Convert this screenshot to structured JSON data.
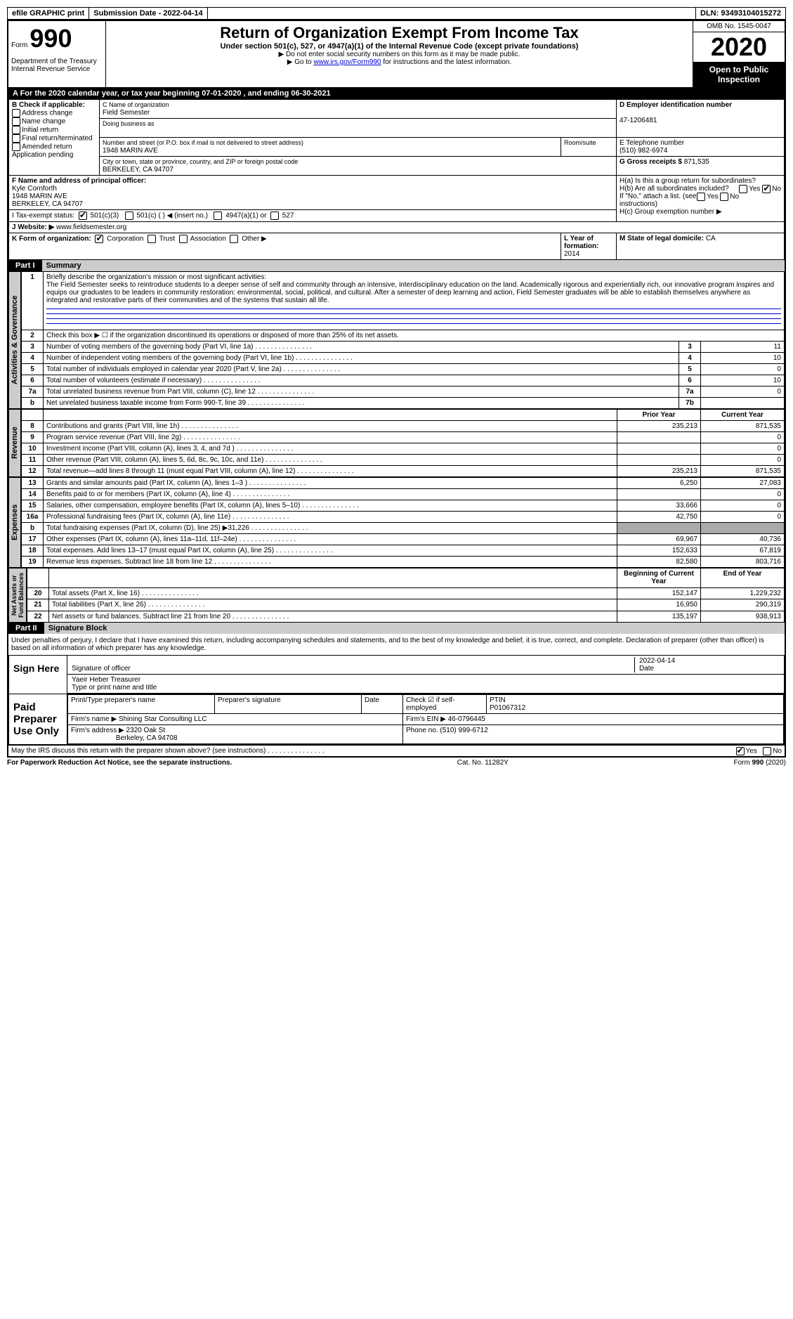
{
  "topbar": {
    "efile": "efile GRAPHIC print",
    "subdate_label": "Submission Date - ",
    "subdate": "2022-04-14",
    "dln_label": "DLN: ",
    "dln": "93493104015272"
  },
  "header": {
    "form_word": "Form",
    "form_num": "990",
    "department": "Department of the Treasury\nInternal Revenue Service",
    "title": "Return of Organization Exempt From Income Tax",
    "subtitle": "Under section 501(c), 527, or 4947(a)(1) of the Internal Revenue Code (except private foundations)",
    "note1": "▶ Do not enter social security numbers on this form as it may be made public.",
    "note2_pre": "▶ Go to ",
    "note2_link": "www.irs.gov/Form990",
    "note2_post": " for instructions and the latest information.",
    "omb": "OMB No. 1545-0047",
    "year": "2020",
    "open": "Open to Public Inspection"
  },
  "lineA": "A For the 2020 calendar year, or tax year beginning 07-01-2020   , and ending 06-30-2021",
  "boxB": {
    "heading": "B Check if applicable:",
    "items": [
      "Address change",
      "Name change",
      "Initial return",
      "Final return/terminated",
      "Amended return",
      "Application pending"
    ]
  },
  "boxC": {
    "label_name": "C Name of organization",
    "name": "Field Semester",
    "dba_label": "Doing business as",
    "street_label": "Number and street (or P.O. box if mail is not delivered to street address)",
    "room_label": "Room/suite",
    "street": "1948 MARIN AVE",
    "city_label": "City or town, state or province, country, and ZIP or foreign postal code",
    "city": "BERKELEY, CA  94707"
  },
  "boxD": {
    "label": "D Employer identification number",
    "value": "47-1206481"
  },
  "boxE": {
    "label": "E Telephone number",
    "value": "(510) 982-6974"
  },
  "boxG": {
    "label": "G Gross receipts $",
    "value": "871,535"
  },
  "boxF": {
    "label": "F  Name and address of principal officer:",
    "name": "Kyle Cornforth",
    "street": "1948 MARIN AVE",
    "city": "BERKELEY, CA  94707"
  },
  "boxH": {
    "ha": "H(a)  Is this a group return for subordinates?",
    "hb": "H(b)  Are all subordinates included?",
    "hb_note": "If \"No,\" attach a list. (see instructions)",
    "hc": "H(c)  Group exemption number ▶",
    "yes": "Yes",
    "no": "No"
  },
  "boxI": {
    "label": "I  Tax-exempt status:",
    "o1": "501(c)(3)",
    "o2": "501(c) (  ) ◀ (insert no.)",
    "o3": "4947(a)(1) or",
    "o4": "527"
  },
  "boxJ": {
    "label": "J  Website: ▶",
    "value": "www.fieldsemester.org"
  },
  "boxK": {
    "label": "K Form of organization:",
    "o1": "Corporation",
    "o2": "Trust",
    "o3": "Association",
    "o4": "Other ▶"
  },
  "boxL": {
    "label": "L Year of formation:",
    "value": "2014"
  },
  "boxM": {
    "label": "M State of legal domicile:",
    "value": "CA"
  },
  "part1": {
    "label": "Part I",
    "title": "Summary"
  },
  "summary": {
    "l1_label": "Briefly describe the organization's mission or most significant activities:",
    "l1_text": "The Field Semester seeks to reintroduce students to a deeper sense of self and community through an intensive, interdisciplinary education on the land. Academically rigorous and experientially rich, our innovative program inspires and equips our graduates to be leaders in community restoration: environmental, social, political, and cultural. After a semester of deep learning and action, Field Semester graduates will be able to establish themselves anywhere as integrated and restorative parts of their communities and of the systems that sustain all life.",
    "l2": "Check this box ▶ ☐  if the organization discontinued its operations or disposed of more than 25% of its net assets.",
    "lines_ag": [
      {
        "n": "3",
        "t": "Number of voting members of the governing body (Part VI, line 1a)",
        "r": "3",
        "v": "11"
      },
      {
        "n": "4",
        "t": "Number of independent voting members of the governing body (Part VI, line 1b)",
        "r": "4",
        "v": "10"
      },
      {
        "n": "5",
        "t": "Total number of individuals employed in calendar year 2020 (Part V, line 2a)",
        "r": "5",
        "v": "0"
      },
      {
        "n": "6",
        "t": "Total number of volunteers (estimate if necessary)",
        "r": "6",
        "v": "10"
      },
      {
        "n": "7a",
        "t": "Total unrelated business revenue from Part VIII, column (C), line 12",
        "r": "7a",
        "v": "0"
      },
      {
        "n": "b",
        "t": "Net unrelated business taxable income from Form 990-T, line 39",
        "r": "7b",
        "v": ""
      }
    ],
    "col_prior": "Prior Year",
    "col_current": "Current Year",
    "revenue": [
      {
        "n": "8",
        "t": "Contributions and grants (Part VIII, line 1h)",
        "p": "235,213",
        "c": "871,535"
      },
      {
        "n": "9",
        "t": "Program service revenue (Part VIII, line 2g)",
        "p": "",
        "c": "0"
      },
      {
        "n": "10",
        "t": "Investment income (Part VIII, column (A), lines 3, 4, and 7d )",
        "p": "",
        "c": "0"
      },
      {
        "n": "11",
        "t": "Other revenue (Part VIII, column (A), lines 5, 6d, 8c, 9c, 10c, and 11e)",
        "p": "",
        "c": "0"
      },
      {
        "n": "12",
        "t": "Total revenue—add lines 8 through 11 (must equal Part VIII, column (A), line 12)",
        "p": "235,213",
        "c": "871,535"
      }
    ],
    "expenses": [
      {
        "n": "13",
        "t": "Grants and similar amounts paid (Part IX, column (A), lines 1–3 )",
        "p": "6,250",
        "c": "27,083"
      },
      {
        "n": "14",
        "t": "Benefits paid to or for members (Part IX, column (A), line 4)",
        "p": "",
        "c": "0"
      },
      {
        "n": "15",
        "t": "Salaries, other compensation, employee benefits (Part IX, column (A), lines 5–10)",
        "p": "33,666",
        "c": "0"
      },
      {
        "n": "16a",
        "t": "Professional fundraising fees (Part IX, column (A), line 11e)",
        "p": "42,750",
        "c": "0"
      },
      {
        "n": "b",
        "t": "Total fundraising expenses (Part IX, column (D), line 25) ▶31,226",
        "p": "SHADE",
        "c": "SHADE"
      },
      {
        "n": "17",
        "t": "Other expenses (Part IX, column (A), lines 11a–11d, 11f–24e)",
        "p": "69,967",
        "c": "40,736"
      },
      {
        "n": "18",
        "t": "Total expenses. Add lines 13–17 (must equal Part IX, column (A), line 25)",
        "p": "152,633",
        "c": "67,819"
      },
      {
        "n": "19",
        "t": "Revenue less expenses. Subtract line 18 from line 12",
        "p": "82,580",
        "c": "803,716"
      }
    ],
    "col_begin": "Beginning of Current Year",
    "col_end": "End of Year",
    "netassets": [
      {
        "n": "20",
        "t": "Total assets (Part X, line 16)",
        "p": "152,147",
        "c": "1,229,232"
      },
      {
        "n": "21",
        "t": "Total liabilities (Part X, line 26)",
        "p": "16,950",
        "c": "290,319"
      },
      {
        "n": "22",
        "t": "Net assets or fund balances. Subtract line 21 from line 20",
        "p": "135,197",
        "c": "938,913"
      }
    ]
  },
  "part2": {
    "label": "Part II",
    "title": "Signature Block"
  },
  "sig": {
    "perjury": "Under penalties of perjury, I declare that I have examined this return, including accompanying schedules and statements, and to the best of my knowledge and belief, it is true, correct, and complete. Declaration of preparer (other than officer) is based on all information of which preparer has any knowledge.",
    "signhere": "Sign Here",
    "sig_officer": "Signature of officer",
    "date_label": "Date",
    "sig_date": "2022-04-14",
    "name_title": "Yaeir Heber  Treasurer",
    "type_label": "Type or print name and title",
    "paid": "Paid Preparer Use Only",
    "pname_label": "Print/Type preparer's name",
    "psig_label": "Preparer's signature",
    "check_self": "Check ☑ if self-employed",
    "ptin_label": "PTIN",
    "ptin": "P01067312",
    "firm_name_label": "Firm's name    ▶",
    "firm_name": "Shining Star Consulting LLC",
    "firm_ein_label": "Firm's EIN ▶",
    "firm_ein": "46-0796445",
    "firm_addr_label": "Firm's address ▶",
    "firm_addr": "2320 Oak St",
    "firm_city": "Berkeley, CA  94708",
    "phone_label": "Phone no.",
    "phone": "(510) 999-6712",
    "discuss": "May the IRS discuss this return with the preparer shown above? (see instructions)",
    "yes": "Yes",
    "no": "No"
  },
  "footer": {
    "pra": "For Paperwork Reduction Act Notice, see the separate instructions.",
    "cat": "Cat. No. 11282Y",
    "form": "Form 990 (2020)"
  },
  "sidelabels": {
    "ag": "Activities & Governance",
    "rev": "Revenue",
    "exp": "Expenses",
    "na": "Net Assets or\nFund Balances"
  }
}
